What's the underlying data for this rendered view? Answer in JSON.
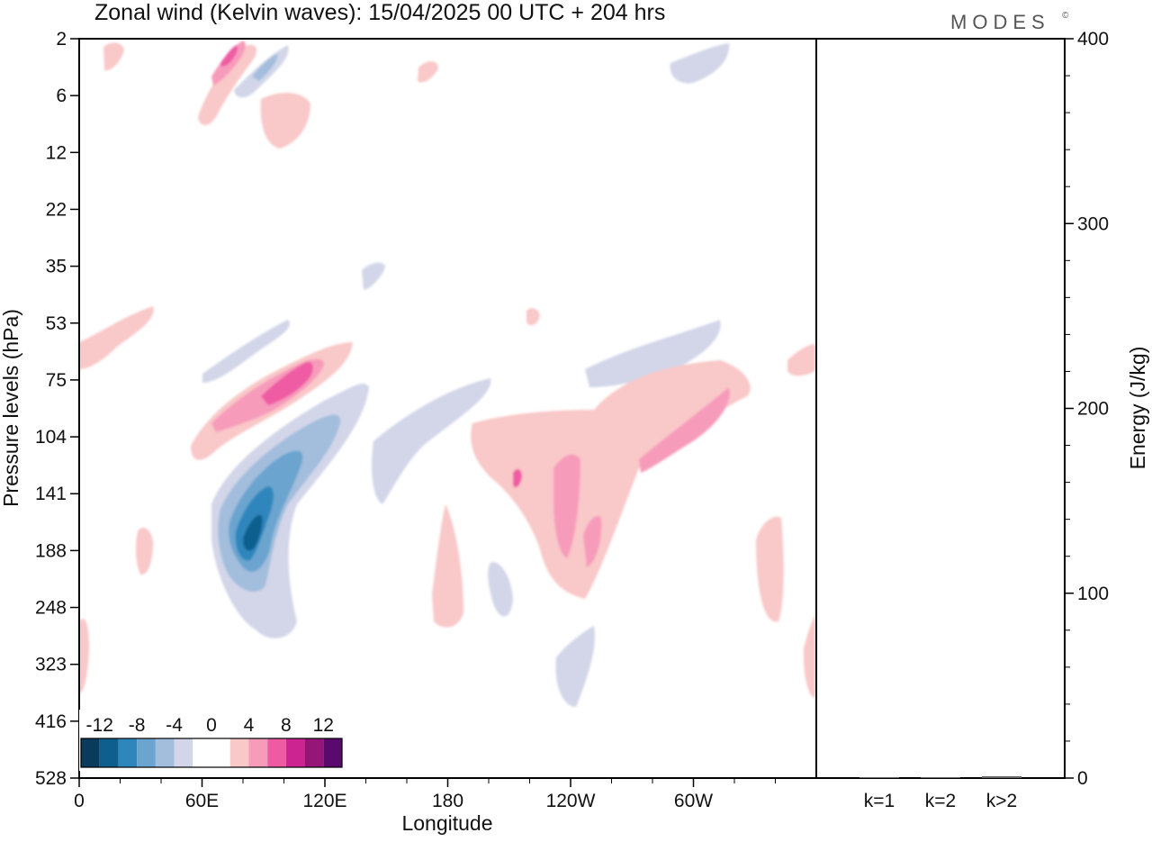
{
  "title": "Zonal wind (Kelvin waves):  15/04/2025  00 UTC  + 204 hrs",
  "logo": "MODES",
  "logo_mark": "©",
  "chart_data": {
    "type": "heatmap",
    "title": "Zonal wind (Kelvin waves):  15/04/2025  00 UTC  + 204 hrs",
    "xlabel": "Longitude",
    "ylabel": "Pressure levels (hPa)",
    "x_ticks": [
      "0",
      "60E",
      "120E",
      "180",
      "120W",
      "60W"
    ],
    "y_ticks": [
      "2",
      "6",
      "12",
      "22",
      "35",
      "53",
      "75",
      "104",
      "141",
      "188",
      "248",
      "323",
      "416",
      "528"
    ],
    "colorbar": {
      "tick_labels": [
        "-12",
        "-8",
        "-4",
        "0",
        "4",
        "8",
        "12"
      ],
      "colors": [
        "#0a3a5c",
        "#0f5f8e",
        "#2e86bd",
        "#6aa4cf",
        "#a3bddd",
        "#d2d6e8",
        "#ffffff",
        "#ffffff",
        "#f9c8c8",
        "#f79bbb",
        "#ef5ba3",
        "#cc2491",
        "#961678",
        "#5a0a6c"
      ]
    },
    "contours": [
      {
        "level": 8,
        "lon": 95,
        "p": 80
      },
      {
        "level": 6,
        "lon": 92,
        "p": 90
      },
      {
        "level": 4,
        "lon": 82,
        "p": 100
      },
      {
        "level": -12,
        "lon": 90,
        "p": 160
      },
      {
        "level": -8,
        "lon": 95,
        "p": 150
      },
      {
        "level": -4,
        "lon": 100,
        "p": 140
      },
      {
        "level": -2,
        "lon": 95,
        "p": 200
      },
      {
        "level": 4,
        "lon": 240,
        "p": 130
      },
      {
        "level": 6,
        "lon": 240,
        "p": 160
      },
      {
        "level": 6,
        "lon": 300,
        "p": 105
      },
      {
        "level": 4,
        "lon": 290,
        "p": 110
      },
      {
        "level": -2,
        "lon": 290,
        "p": 65
      },
      {
        "level": -2,
        "lon": 250,
        "p": 350
      },
      {
        "level": 6,
        "lon": 75,
        "p": 3
      }
    ],
    "energy_panel": {
      "ylabel": "Energy (J/kg)",
      "y_ticks": [
        "0",
        "100",
        "200",
        "300",
        "400"
      ],
      "ylim": [
        0,
        400
      ],
      "categories": [
        "k=1",
        "k=2",
        "k>2"
      ],
      "values": [
        0.5,
        0.5,
        1
      ]
    }
  }
}
